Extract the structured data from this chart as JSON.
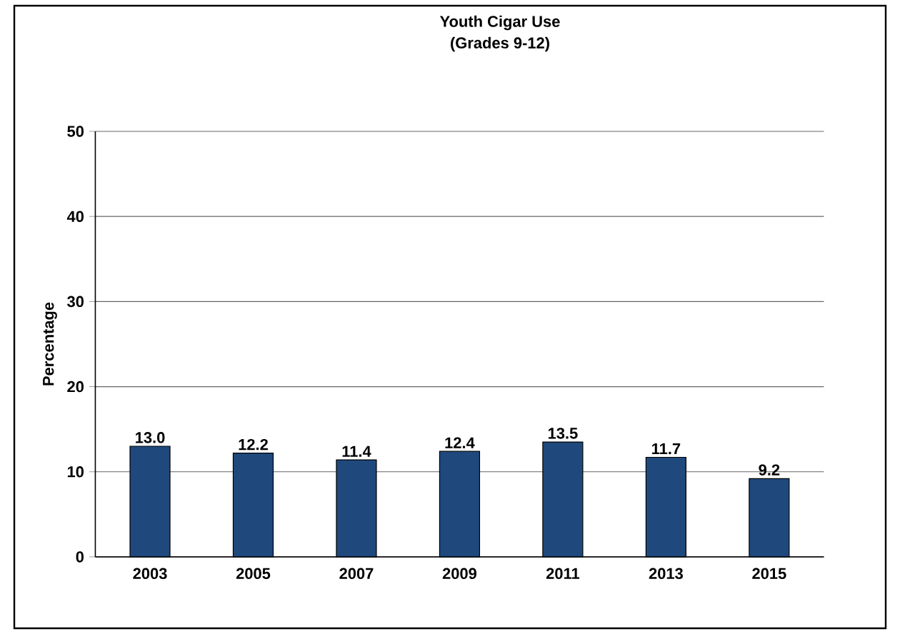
{
  "chart_data": {
    "type": "bar",
    "title": "Youth Cigar Use",
    "subtitle": "(Grades 9-12)",
    "ylabel": "Percentage",
    "categories": [
      "2003",
      "2005",
      "2007",
      "2009",
      "2011",
      "2013",
      "2015"
    ],
    "values": [
      13.0,
      12.2,
      11.4,
      12.4,
      13.5,
      11.7,
      9.2
    ],
    "value_labels": [
      "13.0",
      "12.2",
      "11.4",
      "12.4",
      "13.5",
      "11.7",
      "9.2"
    ],
    "color": "#1f497d",
    "ylim": [
      0,
      50
    ],
    "yticks": [
      0,
      10,
      20,
      30,
      40,
      50
    ],
    "grid": "y"
  }
}
